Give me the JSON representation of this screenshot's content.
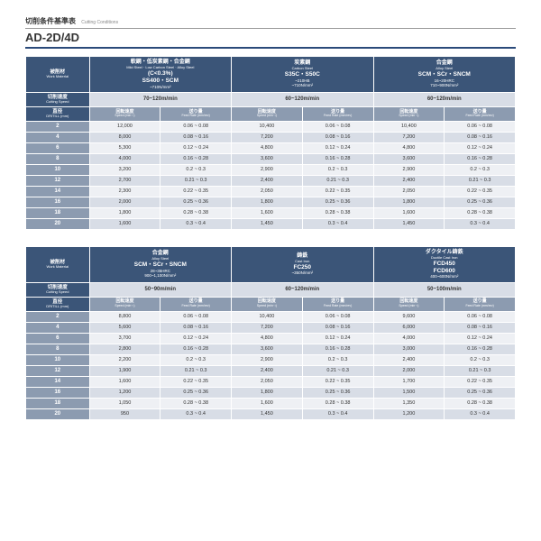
{
  "header": {
    "subtitle_jp": "切削条件基準表",
    "subtitle_en": "Cutting Conditions",
    "main": "AD-2D/4D"
  },
  "labels": {
    "material_jp": "被削材",
    "material_en": "Work Material",
    "cutspeed_jp": "切削速度",
    "cutspeed_en": "Cutting Speed",
    "dia_jp": "直径",
    "dia_en": "DRITILL (mm)",
    "rot_jp": "回転速度",
    "rot_en": "Speed (min⁻¹)",
    "feed_jp": "送り量",
    "feed_en": "Feed Rate (mm/rev)"
  },
  "diameters": [
    "2",
    "4",
    "6",
    "8",
    "10",
    "12",
    "14",
    "16",
    "18",
    "20"
  ],
  "table1": [
    {
      "jp": "軟鋼・低炭素鋼・合金鋼",
      "sub": "Mild Steel · Low Carbon Steel · Alloy Steel",
      "code": "(C<0.3%)\nSS400・SCM",
      "spec": "~710N/mm²",
      "speed": "70~120m/min",
      "rows": [
        [
          "12,000",
          "0.06 ~ 0.08"
        ],
        [
          "8,000",
          "0.08 ~ 0.16"
        ],
        [
          "5,300",
          "0.12 ~ 0.24"
        ],
        [
          "4,000",
          "0.16 ~ 0.28"
        ],
        [
          "3,200",
          "0.2 ~ 0.3"
        ],
        [
          "2,700",
          "0.21 ~ 0.3"
        ],
        [
          "2,300",
          "0.22 ~ 0.35"
        ],
        [
          "2,000",
          "0.25 ~ 0.36"
        ],
        [
          "1,800",
          "0.28 ~ 0.38"
        ],
        [
          "1,600",
          "0.3 ~ 0.4"
        ]
      ]
    },
    {
      "jp": "炭素鋼",
      "sub": "Carbon Steel",
      "code": "S35C・S50C",
      "spec": "~210HB\n~710N/mm²",
      "speed": "60~120m/min",
      "rows": [
        [
          "10,400",
          "0.06 ~ 0.08"
        ],
        [
          "7,200",
          "0.08 ~ 0.16"
        ],
        [
          "4,800",
          "0.12 ~ 0.24"
        ],
        [
          "3,600",
          "0.16 ~ 0.28"
        ],
        [
          "2,900",
          "0.2 ~ 0.3"
        ],
        [
          "2,400",
          "0.21 ~ 0.3"
        ],
        [
          "2,050",
          "0.22 ~ 0.35"
        ],
        [
          "1,800",
          "0.25 ~ 0.36"
        ],
        [
          "1,600",
          "0.28 ~ 0.38"
        ],
        [
          "1,450",
          "0.3 ~ 0.4"
        ]
      ]
    },
    {
      "jp": "合金鋼",
      "sub": "Alloy Steel",
      "code": "SCM・SCr・SNCM",
      "spec": "16~20HRC\n710~900N/mm²",
      "speed": "60~120m/min",
      "rows": [
        [
          "10,400",
          "0.06 ~ 0.08"
        ],
        [
          "7,200",
          "0.08 ~ 0.16"
        ],
        [
          "4,800",
          "0.12 ~ 0.24"
        ],
        [
          "3,600",
          "0.16 ~ 0.28"
        ],
        [
          "2,900",
          "0.2 ~ 0.3"
        ],
        [
          "2,400",
          "0.21 ~ 0.3"
        ],
        [
          "2,050",
          "0.22 ~ 0.35"
        ],
        [
          "1,800",
          "0.25 ~ 0.36"
        ],
        [
          "1,600",
          "0.28 ~ 0.38"
        ],
        [
          "1,450",
          "0.3 ~ 0.4"
        ]
      ]
    }
  ],
  "table2": [
    {
      "jp": "合金鋼",
      "sub": "Alloy Steel",
      "code": "SCM・SCr・SNCM",
      "spec": "28~35HRC\n900~1,100N/mm²",
      "speed": "50~90m/min",
      "rows": [
        [
          "8,800",
          "0.06 ~ 0.08"
        ],
        [
          "5,600",
          "0.08 ~ 0.16"
        ],
        [
          "3,700",
          "0.12 ~ 0.24"
        ],
        [
          "2,800",
          "0.16 ~ 0.28"
        ],
        [
          "2,200",
          "0.2 ~ 0.3"
        ],
        [
          "1,900",
          "0.21 ~ 0.3"
        ],
        [
          "1,600",
          "0.22 ~ 0.35"
        ],
        [
          "1,200",
          "0.25 ~ 0.36"
        ],
        [
          "1,050",
          "0.28 ~ 0.38"
        ],
        [
          "950",
          "0.3 ~ 0.4"
        ]
      ]
    },
    {
      "jp": "鋳鉄",
      "sub": "Cast Iron",
      "code": "FC250",
      "spec": "~350N/mm²",
      "speed": "60~120m/min",
      "rows": [
        [
          "10,400",
          "0.06 ~ 0.08"
        ],
        [
          "7,200",
          "0.08 ~ 0.16"
        ],
        [
          "4,800",
          "0.12 ~ 0.24"
        ],
        [
          "3,600",
          "0.16 ~ 0.28"
        ],
        [
          "2,900",
          "0.2 ~ 0.3"
        ],
        [
          "2,400",
          "0.21 ~ 0.3"
        ],
        [
          "2,050",
          "0.22 ~ 0.35"
        ],
        [
          "1,800",
          "0.25 ~ 0.36"
        ],
        [
          "1,600",
          "0.28 ~ 0.38"
        ],
        [
          "1,450",
          "0.3 ~ 0.4"
        ]
      ]
    },
    {
      "jp": "ダクタイル鋳鉄",
      "sub": "Ductile Cast Iron",
      "code": "FCD450\nFCD600",
      "spec": "400~600N/mm²",
      "speed": "50~100m/min",
      "rows": [
        [
          "9,600",
          "0.06 ~ 0.08"
        ],
        [
          "6,000",
          "0.08 ~ 0.16"
        ],
        [
          "4,000",
          "0.12 ~ 0.24"
        ],
        [
          "3,000",
          "0.16 ~ 0.28"
        ],
        [
          "2,400",
          "0.2 ~ 0.3"
        ],
        [
          "2,000",
          "0.21 ~ 0.3"
        ],
        [
          "1,700",
          "0.22 ~ 0.35"
        ],
        [
          "1,500",
          "0.25 ~ 0.36"
        ],
        [
          "1,350",
          "0.28 ~ 0.38"
        ],
        [
          "1,200",
          "0.3 ~ 0.4"
        ]
      ]
    }
  ]
}
